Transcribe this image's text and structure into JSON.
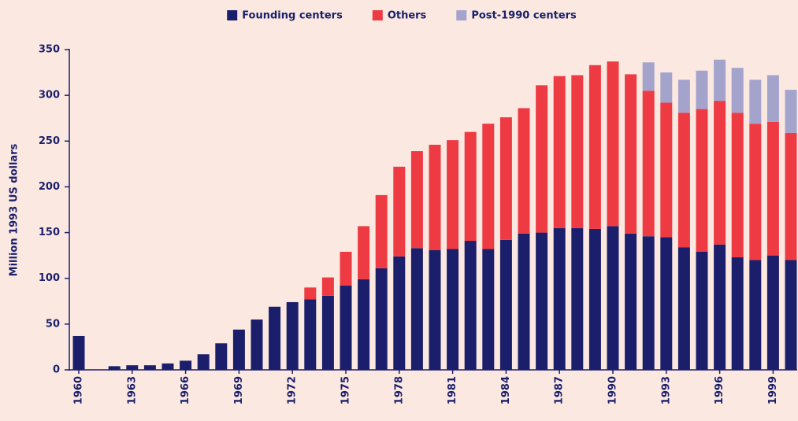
{
  "chart_data": {
    "type": "bar",
    "stacked": true,
    "y_label": "Million 1993 US dollars",
    "categories": [
      "1960",
      null,
      null,
      "1963",
      null,
      null,
      "1966",
      null,
      null,
      "1969",
      null,
      null,
      "1972",
      null,
      null,
      "1975",
      null,
      null,
      "1978",
      null,
      null,
      "1981",
      null,
      null,
      "1984",
      null,
      null,
      "1987",
      null,
      null,
      "1990",
      null,
      null,
      "1993",
      null,
      null,
      "1996",
      null,
      null,
      "1999",
      null
    ],
    "series": [
      {
        "name": "Founding centers",
        "color": "#1b1f6b",
        "values": [
          37,
          0,
          4,
          5,
          5,
          7,
          10,
          17,
          29,
          44,
          55,
          69,
          74,
          77,
          81,
          92,
          99,
          111,
          124,
          133,
          131,
          132,
          141,
          132,
          142,
          149,
          150,
          155,
          155,
          154,
          157,
          149,
          146,
          145,
          134,
          129,
          137,
          123,
          120,
          125,
          120
        ]
      },
      {
        "name": "Others",
        "color": "#ee3b43",
        "values": [
          0,
          0,
          0,
          0,
          0,
          0,
          0,
          0,
          0,
          0,
          0,
          0,
          0,
          13,
          20,
          37,
          58,
          80,
          98,
          106,
          115,
          119,
          119,
          137,
          134,
          137,
          161,
          166,
          167,
          179,
          180,
          174,
          159,
          147,
          147,
          156,
          157,
          158,
          149,
          146,
          139
        ]
      },
      {
        "name": "Post-1990 centers",
        "color": "#a3a3cc",
        "values": [
          0,
          0,
          0,
          0,
          0,
          0,
          0,
          0,
          0,
          0,
          0,
          0,
          0,
          0,
          0,
          0,
          0,
          0,
          0,
          0,
          0,
          0,
          0,
          0,
          0,
          0,
          0,
          0,
          0,
          0,
          0,
          0,
          31,
          33,
          36,
          42,
          45,
          49,
          48,
          51,
          47
        ]
      }
    ],
    "ylim": [
      0,
      350
    ],
    "yticks": [
      0,
      50,
      100,
      150,
      200,
      250,
      300,
      350
    ],
    "legend": "top"
  }
}
